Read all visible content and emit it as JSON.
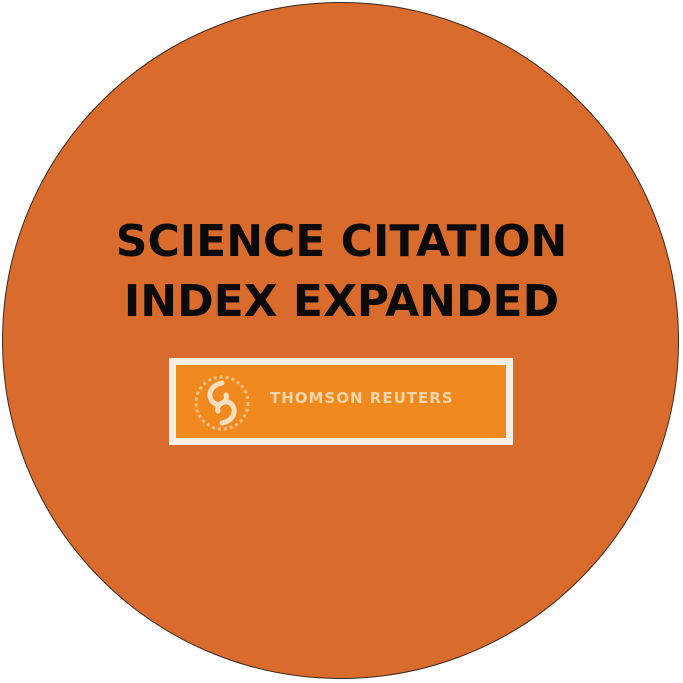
{
  "badge": {
    "title_line1": "SCIENCE CITATION",
    "title_line2": "INDEX EXPANDED",
    "background_color": "#d96b2c"
  },
  "logo": {
    "text": "THOMSON REUTERS",
    "icon": "thomson-reuters-logo-icon",
    "color": "#f08a1e"
  }
}
